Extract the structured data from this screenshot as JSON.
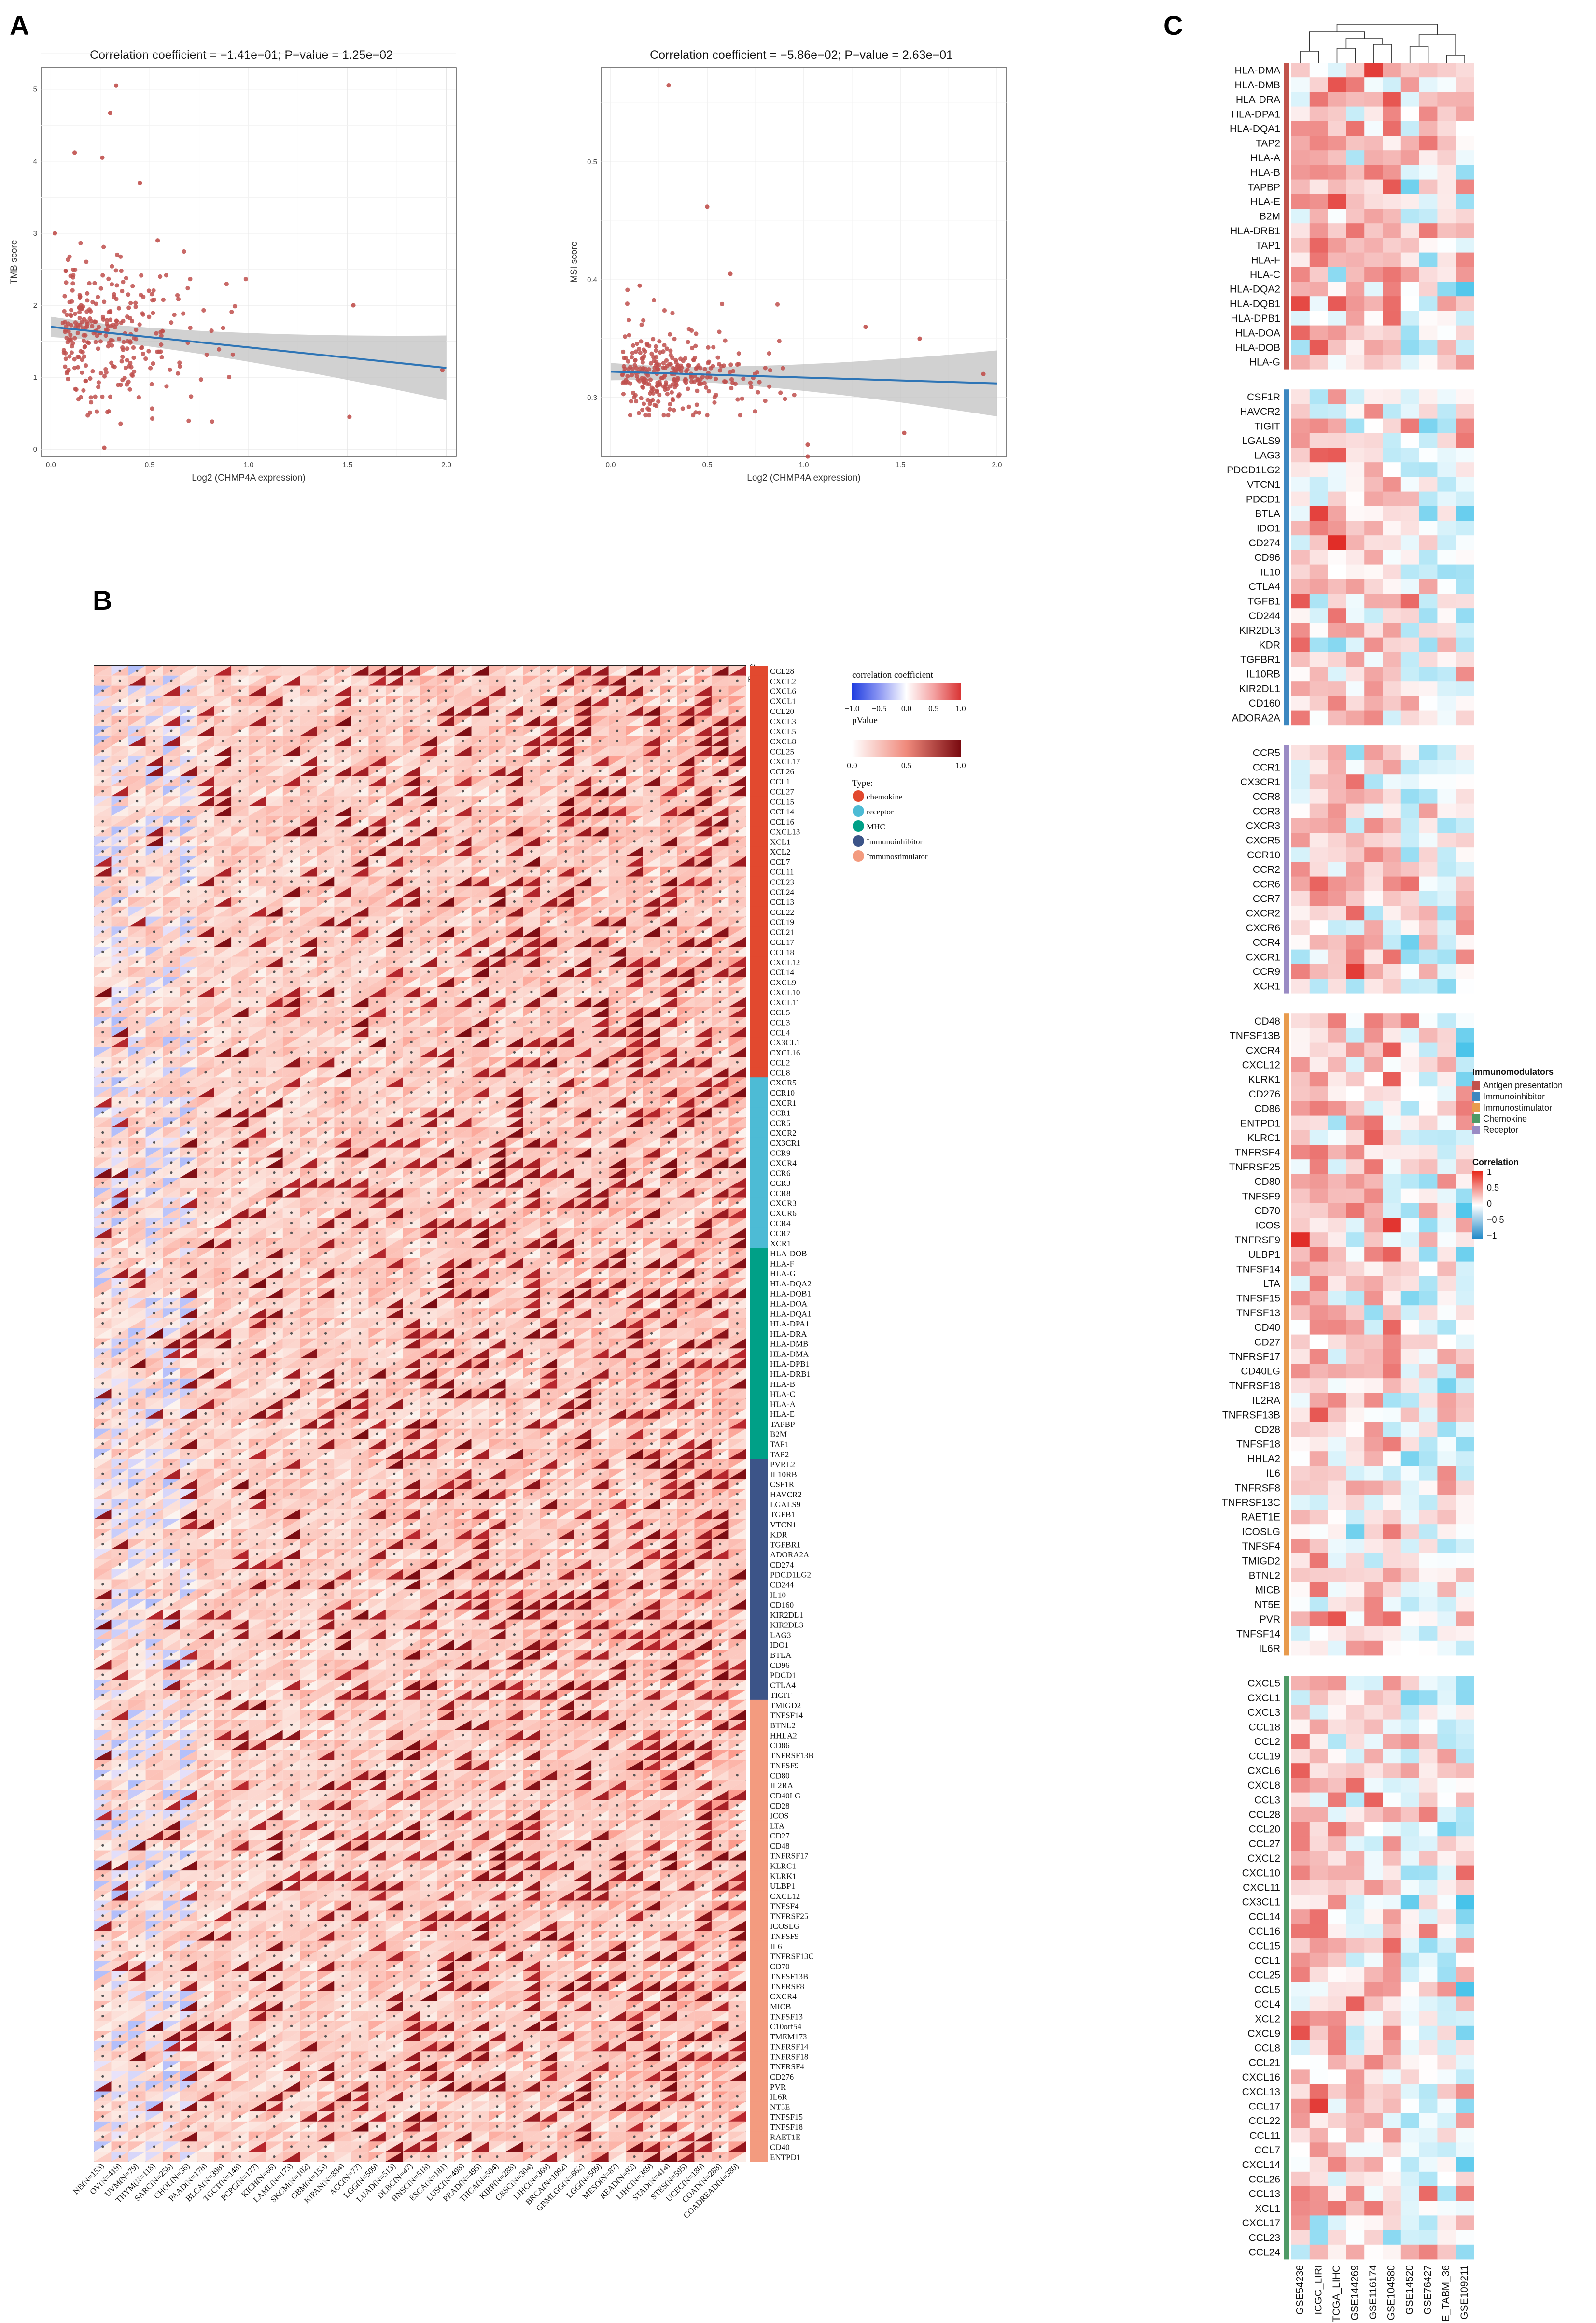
{
  "panels": {
    "A": "A",
    "B": "B",
    "C": "C"
  },
  "chart_data": [
    {
      "id": "A1",
      "type": "scatter",
      "title": "Correlation coefficient = −1.41e−01; P−value = 1.25e−02",
      "xlabel": "Log2 (CHMP4A expression)",
      "ylabel": "TMB score",
      "xlim": [
        -0.05,
        2.05
      ],
      "ylim": [
        -0.1,
        5.3
      ],
      "xticks": [
        "0.0",
        "0.5",
        "1.0",
        "1.5",
        "2.0"
      ],
      "yticks": [
        "0",
        "1",
        "2",
        "3",
        "4",
        "5"
      ],
      "trend": {
        "x0": 0.0,
        "y0": 1.7,
        "x1": 2.0,
        "y1": 1.13
      },
      "notable_points": [
        [
          0.33,
          5.05
        ],
        [
          0.3,
          4.67
        ],
        [
          0.12,
          4.12
        ],
        [
          0.26,
          4.05
        ],
        [
          0.45,
          3.7
        ],
        [
          0.02,
          3.0
        ],
        [
          0.54,
          2.9
        ],
        [
          1.53,
          2.0
        ],
        [
          1.98,
          1.1
        ],
        [
          1.51,
          0.45
        ],
        [
          0.27,
          0.02
        ]
      ],
      "grid": true
    },
    {
      "id": "A2",
      "type": "scatter",
      "title": "Correlation coefficient = −5.86e−02; P−value = 2.63e−01",
      "xlabel": "Log2 (CHMP4A expression)",
      "ylabel": "MSI score",
      "xlim": [
        -0.05,
        2.05
      ],
      "ylim": [
        0.25,
        0.58
      ],
      "xticks": [
        "0.0",
        "0.5",
        "1.0",
        "1.5",
        "2.0"
      ],
      "yticks": [
        "0.3",
        "0.4",
        "0.5"
      ],
      "trend": {
        "x0": 0.0,
        "y0": 0.322,
        "x1": 2.0,
        "y1": 0.312
      },
      "notable_points": [
        [
          0.3,
          0.565
        ],
        [
          0.5,
          0.462
        ],
        [
          0.62,
          0.405
        ],
        [
          0.15,
          0.395
        ],
        [
          1.32,
          0.36
        ],
        [
          1.6,
          0.35
        ],
        [
          1.93,
          0.32
        ],
        [
          1.52,
          0.27
        ],
        [
          1.02,
          0.25
        ],
        [
          1.02,
          0.26
        ]
      ],
      "grid": true
    },
    {
      "id": "B",
      "type": "heatmap",
      "xlabels": [
        "NB(N=153)",
        "OV(N=419)",
        "UVM(N=79)",
        "THYM(N=118)",
        "SARC(N=258)",
        "CHOL(N=36)",
        "PAAD(N=178)",
        "BLCA(N=398)",
        "TGCT(N=148)",
        "PCPG(N=177)",
        "KICH(N=66)",
        "LAML(N=173)",
        "SKCM(N=102)",
        "GBM(N=153)",
        "KIPAN(N=884)",
        "ACC(N=77)",
        "LGG(N=509)",
        "LUAD(N=513)",
        "DLBC(N=47)",
        "HNSC(N=518)",
        "ESCA(N=181)",
        "LUSC(N=498)",
        "PRAD(N=495)",
        "THCA(N=504)",
        "KIRP(N=288)",
        "CESC(N=304)",
        "LIHC(N=369)",
        "BRCA(N=1092)",
        "GBMLGG(N=662)",
        "LGG(N=509)",
        "MESO(N=87)",
        "READ(N=92)",
        "LIHC(N=369)",
        "STAD(N=414)",
        "STES(N=595)",
        "UCEC(N=180)",
        "COAD(N=288)",
        "COADREAD(N=380)"
      ],
      "groups": [
        {
          "type": "chemokine",
          "color": "#E2492F",
          "genes": [
            "CCL28",
            "CXCL2",
            "CXCL6",
            "CXCL1",
            "CCL20",
            "CXCL3",
            "CXCL5",
            "CXCL8",
            "CCL25",
            "CXCL17",
            "CCL26",
            "CCL1",
            "CCL27",
            "CCL15",
            "CCL14",
            "CCL16",
            "CXCL13",
            "XCL1",
            "XCL2",
            "CCL7",
            "CCL11",
            "CCL23",
            "CCL24",
            "CCL13",
            "CCL22",
            "CCL19",
            "CCL21",
            "CCL17",
            "CCL18",
            "CXCL12",
            "CCL14",
            "CXCL9",
            "CXCL10",
            "CXCL11",
            "CCL5",
            "CCL3",
            "CCL4",
            "CX3CL1",
            "CXCL16",
            "CCL2",
            "CCL8"
          ]
        },
        {
          "type": "receptor",
          "color": "#4DBBD5",
          "genes": [
            "CXCR5",
            "CCR10",
            "CXCR1",
            "CCR1",
            "CCR5",
            "CXCR2",
            "CX3CR1",
            "CCR9",
            "CXCR4",
            "CCR6",
            "CCR3",
            "CCR8",
            "CXCR3",
            "CXCR6",
            "CCR4",
            "CCR7",
            "XCR1"
          ]
        },
        {
          "type": "MHC",
          "color": "#00A087",
          "genes": [
            "HLA-DOB",
            "HLA-F",
            "HLA-G",
            "HLA-DQA2",
            "HLA-DQB1",
            "HLA-DOA",
            "HLA-DQA1",
            "HLA-DPA1",
            "HLA-DRA",
            "HLA-DMB",
            "HLA-DMA",
            "HLA-DPB1",
            "HLA-DRB1",
            "HLA-B",
            "HLA-C",
            "HLA-A",
            "HLA-E",
            "TAPBP",
            "B2M",
            "TAP1",
            "TAP2"
          ]
        },
        {
          "type": "Immunoinhibitor",
          "color": "#3C5488",
          "genes": [
            "PVRL2",
            "IL10RB",
            "CSF1R",
            "HAVCR2",
            "LGALS9",
            "TGFB1",
            "VTCN1",
            "KDR",
            "TGFBR1",
            "ADORA2A",
            "CD274",
            "PDCD1LG2",
            "CD244",
            "IL10",
            "CD160",
            "KIR2DL1",
            "KIR2DL3",
            "LAG3",
            "IDO1",
            "BTLA",
            "CD96",
            "PDCD1",
            "CTLA4",
            "TIGIT"
          ]
        },
        {
          "type": "Immunostimulator",
          "color": "#F39B7F",
          "genes": [
            "TMIGD2",
            "TNFSF14",
            "BTNL2",
            "HHLA2",
            "CD86",
            "TNFRSF13B",
            "TNFSF9",
            "CD80",
            "IL2RA",
            "CD40LG",
            "CD28",
            "ICOS",
            "LTA",
            "CD27",
            "CD48",
            "TNFRSF17",
            "KLRC1",
            "KLRK1",
            "ULBP1",
            "CXCL12",
            "TNFSF4",
            "TNFRSF25",
            "ICOSLG",
            "TNFSF9",
            "IL6",
            "TNFRSF13C",
            "CD70",
            "TNFSF13B",
            "TNFRSF8",
            "CXCR4",
            "MICB",
            "TNFSF13",
            "C10orf54",
            "TMEM173",
            "TNFRSF14",
            "TNFRSF18",
            "TNFRSF4",
            "CD276",
            "PVR",
            "IL6R",
            "NT5E",
            "TNFSF15",
            "TNFSF18",
            "RAET1E",
            "CD40",
            "ENTPD1"
          ]
        }
      ],
      "type_header": "Type",
      "legend": {
        "coef_title": "correlation coefficient",
        "coef_ticks": [
          "−1.0",
          "−0.5",
          "0.0",
          "0.5",
          "1.0"
        ],
        "p_title": "pValue",
        "p_ticks": [
          "0.0",
          "0.5",
          "1.0"
        ],
        "type_title": "Type:",
        "type_items": [
          "chemokine",
          "receptor",
          "MHC",
          "Immunoinhibitor",
          "Immunostimulator"
        ]
      },
      "colors": {
        "neg": "#2232E0",
        "pos": "#C0392B",
        "dark": "#7A0A10"
      }
    },
    {
      "id": "C",
      "type": "heatmap",
      "columns": [
        "GSE54236",
        "ICGC_LIRI",
        "TCGA_LIHC",
        "GSE144269",
        "GSE116174",
        "GSE104580",
        "GSE14520",
        "GSE76427",
        "E_TABM_36",
        "GSE109211"
      ],
      "groups": [
        {
          "name": "Antigen presentation",
          "color": "#C1534B",
          "genes": [
            "HLA-DMA",
            "HLA-DMB",
            "HLA-DRA",
            "HLA-DPA1",
            "HLA-DQA1",
            "TAP2",
            "HLA-A",
            "HLA-B",
            "TAPBP",
            "HLA-E",
            "B2M",
            "HLA-DRB1",
            "TAP1",
            "HLA-F",
            "HLA-C",
            "HLA-DQA2",
            "HLA-DQB1",
            "HLA-DPB1",
            "HLA-DOA",
            "HLA-DOB",
            "HLA-G"
          ]
        },
        {
          "name": "Immunoinhibitor",
          "color": "#3C87C0",
          "genes": [
            "CSF1R",
            "HAVCR2",
            "TIGIT",
            "LGALS9",
            "LAG3",
            "PDCD1LG2",
            "VTCN1",
            "PDCD1",
            "BTLA",
            "IDO1",
            "CD274",
            "CD96",
            "IL10",
            "CTLA4",
            "TGFB1",
            "CD244",
            "KIR2DL3",
            "KDR",
            "TGFBR1",
            "IL10RB",
            "KIR2DL1",
            "CD160",
            "ADORA2A"
          ]
        },
        {
          "name": "Receptor",
          "color": "#9A8BC4",
          "genes": [
            "CCR5",
            "CCR1",
            "CX3CR1",
            "CCR8",
            "CCR3",
            "CXCR3",
            "CXCR5",
            "CCR10",
            "CCR2",
            "CCR6",
            "CCR7",
            "CXCR2",
            "CXCR6",
            "CCR4",
            "CXCR1",
            "CCR9",
            "XCR1"
          ]
        },
        {
          "name": "Immunostimulator",
          "color": "#E89B4D",
          "genes": [
            "CD48",
            "TNFSF13B",
            "CXCR4",
            "CXCL12",
            "KLRK1",
            "CD276",
            "CD86",
            "ENTPD1",
            "KLRC1",
            "TNFRSF4",
            "TNFRSF25",
            "CD80",
            "TNFSF9",
            "CD70",
            "ICOS",
            "TNFRSF9",
            "ULBP1",
            "TNFSF14",
            "LTA",
            "TNFSF15",
            "TNFSF13",
            "CD40",
            "CD27",
            "TNFRSF17",
            "CD40LG",
            "TNFRSF18",
            "IL2RA",
            "TNFRSF13B",
            "CD28",
            "TNFSF18",
            "HHLA2",
            "IL6",
            "TNFRSF8",
            "TNFRSF13C",
            "RAET1E",
            "ICOSLG",
            "TNFSF4",
            "TMIGD2",
            "BTNL2",
            "MICB",
            "NT5E",
            "PVR",
            "TNFSF14",
            "IL6R"
          ]
        },
        {
          "name": "Chemokine",
          "color": "#4F9A66",
          "genes": [
            "CXCL5",
            "CXCL1",
            "CXCL3",
            "CCL18",
            "CCL2",
            "CCL19",
            "CXCL6",
            "CXCL8",
            "CCL3",
            "CCL28",
            "CCL20",
            "CCL27",
            "CXCL2",
            "CXCL10",
            "CXCL11",
            "CX3CL1",
            "CCL14",
            "CCL16",
            "CCL15",
            "CCL1",
            "CCL25",
            "CCL5",
            "CCL4",
            "XCL2",
            "CXCL9",
            "CCL8",
            "CCL21",
            "CXCL16",
            "CXCL13",
            "CCL17",
            "CCL22",
            "CCL11",
            "CCL7",
            "CXCL14",
            "CCL26",
            "CCL13",
            "XCL1",
            "CXCL17",
            "CCL23",
            "CCL24"
          ]
        }
      ],
      "legend": {
        "groups_title": "Immunomodulators",
        "groups_items": [
          "Antigen presentation",
          "Immunoinhibitor",
          "Immunostimulator",
          "Chemokine",
          "Receptor"
        ],
        "groups_colors": [
          "#C1534B",
          "#3C87C0",
          "#E89B4D",
          "#4F9A66",
          "#9A8BC4"
        ],
        "corr_title": "Correlation",
        "corr_ticks": [
          "1",
          "0.5",
          "0",
          "−0.5",
          "−1"
        ]
      }
    }
  ]
}
